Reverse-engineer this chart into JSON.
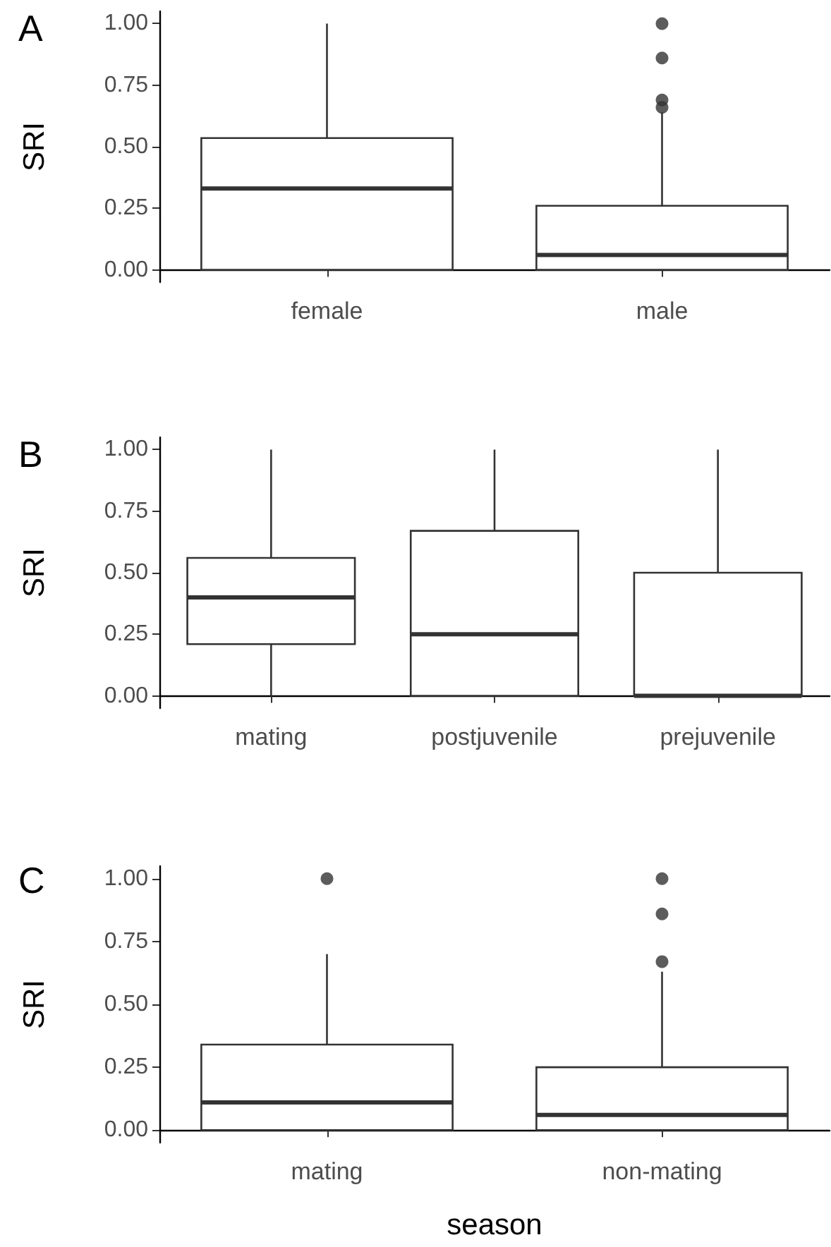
{
  "chart_data": [
    {
      "type": "box",
      "title": "A",
      "ylabel": "SRI",
      "categories": [
        "female",
        "male"
      ],
      "boxes": [
        {
          "low": 0,
          "q1": 0,
          "median": 0.33,
          "q3": 0.535,
          "high": 1
        },
        {
          "low": 0,
          "q1": 0,
          "median": 0.06,
          "q3": 0.26,
          "high": 0.64,
          "outliers": [
            0.66,
            0.69,
            0.86,
            1.0
          ]
        }
      ],
      "ylim": [
        -0.05,
        1.05
      ],
      "yticks": [
        {
          "value": 0,
          "label": "0.00"
        },
        {
          "value": 0.25,
          "label": "0.25"
        },
        {
          "value": 0.5,
          "label": "0.50"
        },
        {
          "value": 0.75,
          "label": "0.75"
        },
        {
          "value": 1,
          "label": "1.00"
        }
      ],
      "grid": false
    },
    {
      "type": "box",
      "title": "B",
      "ylabel": "SRI",
      "categories": [
        "mating",
        "postjuvenile",
        "prejuvenile"
      ],
      "boxes": [
        {
          "low": 0,
          "q1": 0.21,
          "median": 0.4,
          "q3": 0.56,
          "high": 1
        },
        {
          "low": 0,
          "q1": 0,
          "median": 0.25,
          "q3": 0.67,
          "high": 1
        },
        {
          "low": 0,
          "q1": 0,
          "median": 0,
          "q3": 0.5,
          "high": 1
        }
      ],
      "ylim": [
        -0.05,
        1.05
      ],
      "yticks": [
        {
          "value": 0,
          "label": "0.00"
        },
        {
          "value": 0.25,
          "label": "0.25"
        },
        {
          "value": 0.5,
          "label": "0.50"
        },
        {
          "value": 0.75,
          "label": "0.75"
        },
        {
          "value": 1,
          "label": "1.00"
        }
      ],
      "grid": false
    },
    {
      "type": "box",
      "title": "C",
      "ylabel": "SRI",
      "xlabel": "season",
      "categories": [
        "mating",
        "non-mating"
      ],
      "boxes": [
        {
          "low": 0,
          "q1": 0,
          "median": 0.11,
          "q3": 0.34,
          "high": 0.7,
          "outliers": [
            1.0
          ]
        },
        {
          "low": 0,
          "q1": 0,
          "median": 0.06,
          "q3": 0.25,
          "high": 0.63,
          "outliers": [
            0.67,
            0.86,
            1.0
          ]
        }
      ],
      "ylim": [
        -0.05,
        1.05
      ],
      "yticks": [
        {
          "value": 0,
          "label": "0.00"
        },
        {
          "value": 0.25,
          "label": "0.25"
        },
        {
          "value": 0.5,
          "label": "0.50"
        },
        {
          "value": 0.75,
          "label": "0.75"
        },
        {
          "value": 1,
          "label": "1.00"
        }
      ],
      "grid": false
    }
  ]
}
